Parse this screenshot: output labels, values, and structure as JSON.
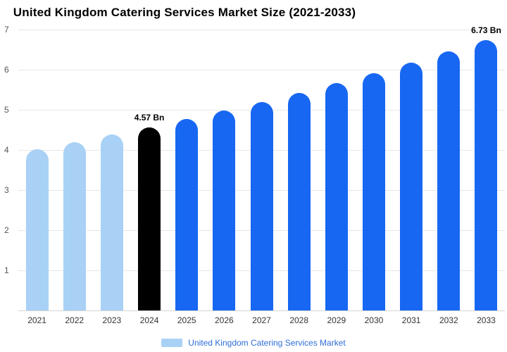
{
  "title": "United Kingdom Catering Services Market Size (2021-2033)",
  "colors": {
    "historical": "#a9d1f6",
    "highlight": "#000000",
    "forecast": "#1767f2",
    "legend_text": "#2f6fd8",
    "grid": "#e7e7e7",
    "axis": "#d5d5d5"
  },
  "legend": {
    "label": "United Kingdom Catering Services Market"
  },
  "chart_data": {
    "type": "bar",
    "title": "United Kingdom Catering Services Market Size (2021-2033)",
    "categories": [
      "2021",
      "2022",
      "2023",
      "2024",
      "2025",
      "2026",
      "2027",
      "2028",
      "2029",
      "2030",
      "2031",
      "2032",
      "2033"
    ],
    "values": [
      4.01,
      4.19,
      4.38,
      4.57,
      4.77,
      4.98,
      5.2,
      5.43,
      5.67,
      5.92,
      6.18,
      6.45,
      6.73
    ],
    "bar_color_keys": [
      "historical",
      "historical",
      "historical",
      "highlight",
      "forecast",
      "forecast",
      "forecast",
      "forecast",
      "forecast",
      "forecast",
      "forecast",
      "forecast",
      "forecast"
    ],
    "value_labels": [
      "",
      "",
      "",
      "4.57 Bn",
      "",
      "",
      "",
      "",
      "",
      "",
      "",
      "",
      "6.73 Bn"
    ],
    "unit": "Bn",
    "xlabel": "",
    "ylabel": "",
    "ylim": [
      0,
      7
    ],
    "yticks": [
      1,
      2,
      3,
      4,
      5,
      6,
      7
    ],
    "grid": true,
    "legend_entries": [
      "United Kingdom Catering Services Market"
    ],
    "legend_position": "bottom"
  }
}
